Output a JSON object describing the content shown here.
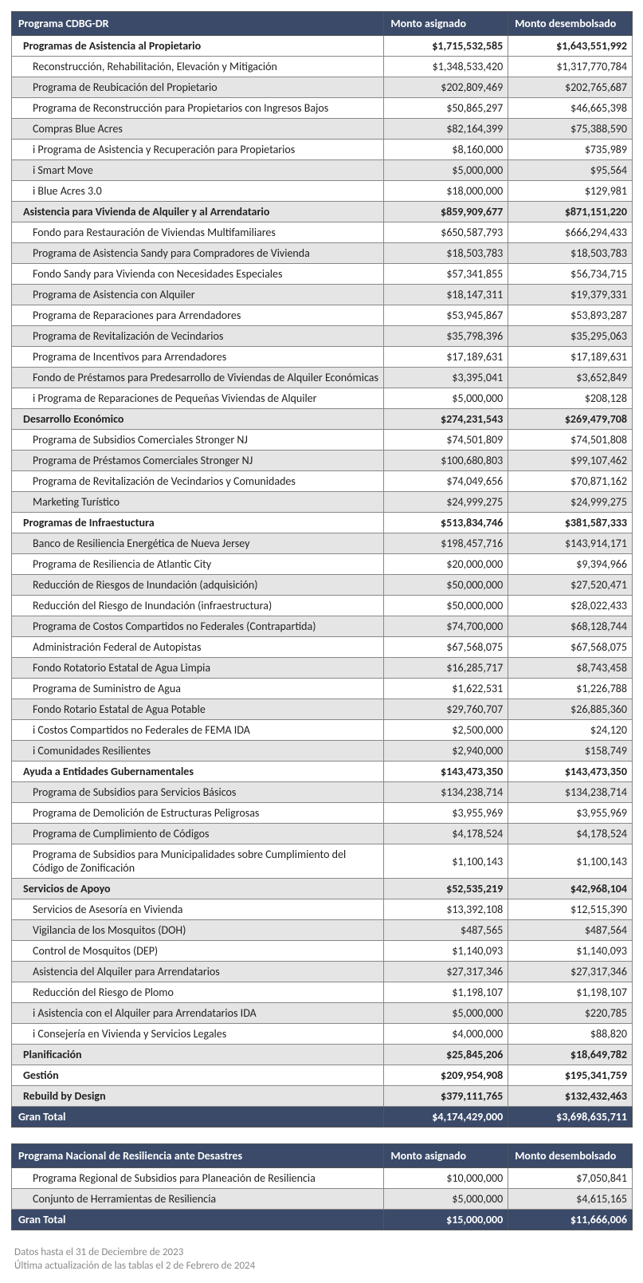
{
  "colors": {
    "header_bg": "#3a4a68",
    "header_text": "#ffffff",
    "row_alt_bg": "#e5e5e5",
    "row_bg": "#ffffff",
    "border": "#888888",
    "footnote": "#8a8a8a"
  },
  "fonts": {
    "family": "Calibri, 'Segoe UI', Arial, sans-serif",
    "base_size_pt": 11
  },
  "tables": [
    {
      "columns": [
        "Programa CDBG-DR",
        "Monto asignado",
        "Monto desembolsado"
      ],
      "rows": [
        {
          "type": "section",
          "alt": false,
          "label": "Programas de Asistencia al Propietario",
          "v1": "$1,715,532,585",
          "v2": "$1,643,551,992"
        },
        {
          "type": "item",
          "alt": false,
          "label": "Reconstrucción, Rehabilitación, Elevación y Mitigación",
          "v1": "$1,348,533,420",
          "v2": "$1,317,770,784"
        },
        {
          "type": "item",
          "alt": true,
          "label": "Programa de Reubicación del Propietario",
          "v1": "$202,809,469",
          "v2": "$202,765,687"
        },
        {
          "type": "item",
          "alt": false,
          "label": "Programa de Reconstrucción para Propietarios con Ingresos Bajos",
          "v1": "$50,865,297",
          "v2": "$46,665,398"
        },
        {
          "type": "item",
          "alt": true,
          "label": "Compras Blue Acres",
          "v1": "$82,164,399",
          "v2": "$75,388,590"
        },
        {
          "type": "item",
          "alt": false,
          "label": "i Programa de Asistencia y Recuperación para Propietarios",
          "v1": "$8,160,000",
          "v2": "$735,989"
        },
        {
          "type": "item",
          "alt": true,
          "label": "i Smart Move",
          "v1": "$5,000,000",
          "v2": "$95,564"
        },
        {
          "type": "item",
          "alt": false,
          "label": "i Blue Acres 3.0",
          "v1": "$18,000,000",
          "v2": "$129,981"
        },
        {
          "type": "section",
          "alt": true,
          "label": "Asistencia para Vivienda de Alquiler y al Arrendatario",
          "v1": "$859,909,677",
          "v2": "$871,151,220"
        },
        {
          "type": "item",
          "alt": false,
          "label": "Fondo para Restauración de Viviendas Multifamiliares",
          "v1": "$650,587,793",
          "v2": "$666,294,433"
        },
        {
          "type": "item",
          "alt": true,
          "label": "Programa de Asistencia Sandy para Compradores de Vivienda",
          "v1": "$18,503,783",
          "v2": "$18,503,783"
        },
        {
          "type": "item",
          "alt": false,
          "label": "Fondo Sandy para Vivienda con Necesidades Especiales",
          "v1": "$57,341,855",
          "v2": "$56,734,715"
        },
        {
          "type": "item",
          "alt": true,
          "label": "Programa de Asistencia con Alquiler",
          "v1": "$18,147,311",
          "v2": "$19,379,331"
        },
        {
          "type": "item",
          "alt": false,
          "label": "Programa de Reparaciones para Arrendadores",
          "v1": "$53,945,867",
          "v2": "$53,893,287"
        },
        {
          "type": "item",
          "alt": true,
          "label": "Programa de Revitalización de Vecindarios",
          "v1": "$35,798,396",
          "v2": "$35,295,063"
        },
        {
          "type": "item",
          "alt": false,
          "label": "Programa de Incentivos para Arrendadores",
          "v1": "$17,189,631",
          "v2": "$17,189,631"
        },
        {
          "type": "item",
          "alt": true,
          "label": "Fondo de Préstamos para Predesarrollo de Viviendas de Alquiler Económicas",
          "v1": "$3,395,041",
          "v2": "$3,652,849"
        },
        {
          "type": "item",
          "alt": false,
          "label": "i Programa de Reparaciones de Pequeñas Viviendas de Alquiler",
          "v1": "$5,000,000",
          "v2": "$208,128"
        },
        {
          "type": "section",
          "alt": true,
          "label": "Desarrollo Económico",
          "v1": "$274,231,543",
          "v2": "$269,479,708"
        },
        {
          "type": "item",
          "alt": false,
          "label": "Programa de Subsidios Comerciales Stronger NJ",
          "v1": "$74,501,809",
          "v2": "$74,501,808"
        },
        {
          "type": "item",
          "alt": true,
          "label": "Programa de Préstamos Comerciales Stronger NJ",
          "v1": "$100,680,803",
          "v2": "$99,107,462"
        },
        {
          "type": "item",
          "alt": false,
          "label": "Programa de Revitalización de Vecindarios y Comunidades",
          "v1": "$74,049,656",
          "v2": "$70,871,162"
        },
        {
          "type": "item",
          "alt": true,
          "label": "Marketing Turístico",
          "v1": "$24,999,275",
          "v2": "$24,999,275"
        },
        {
          "type": "section",
          "alt": false,
          "label": "Programas de Infraestuctura",
          "v1": "$513,834,746",
          "v2": "$381,587,333"
        },
        {
          "type": "item",
          "alt": true,
          "label": "Banco de Resiliencia Energética de Nueva Jersey",
          "v1": "$198,457,716",
          "v2": "$143,914,171"
        },
        {
          "type": "item",
          "alt": false,
          "label": "Programa de Resiliencia de Atlantic City",
          "v1": "$20,000,000",
          "v2": "$9,394,966"
        },
        {
          "type": "item",
          "alt": true,
          "label": "Reducción de Riesgos de Inundación (adquisición)",
          "v1": "$50,000,000",
          "v2": "$27,520,471"
        },
        {
          "type": "item",
          "alt": false,
          "label": "Reducción del Riesgo de Inundación (infraestructura)",
          "v1": "$50,000,000",
          "v2": "$28,022,433"
        },
        {
          "type": "item",
          "alt": true,
          "label": "Programa de Costos Compartidos no Federales (Contrapartida)",
          "v1": "$74,700,000",
          "v2": "$68,128,744"
        },
        {
          "type": "item",
          "alt": false,
          "label": "Administración Federal de Autopistas",
          "v1": "$67,568,075",
          "v2": "$67,568,075"
        },
        {
          "type": "item",
          "alt": true,
          "label": "Fondo Rotatorio Estatal de Agua Limpia",
          "v1": "$16,285,717",
          "v2": "$8,743,458"
        },
        {
          "type": "item",
          "alt": false,
          "label": "Programa de Suministro de Agua",
          "v1": "$1,622,531",
          "v2": "$1,226,788"
        },
        {
          "type": "item",
          "alt": true,
          "label": "Fondo Rotario Estatal de Agua Potable",
          "v1": "$29,760,707",
          "v2": "$26,885,360"
        },
        {
          "type": "item",
          "alt": false,
          "label": "i Costos Compartidos no Federales de FEMA IDA",
          "v1": "$2,500,000",
          "v2": "$24,120"
        },
        {
          "type": "item",
          "alt": true,
          "label": "i Comunidades Resilientes",
          "v1": "$2,940,000",
          "v2": "$158,749"
        },
        {
          "type": "section",
          "alt": false,
          "label": "Ayuda a Entidades Gubernamentales",
          "v1": "$143,473,350",
          "v2": "$143,473,350"
        },
        {
          "type": "item",
          "alt": true,
          "label": "Programa de Subsidios para Servicios Básicos",
          "v1": "$134,238,714",
          "v2": "$134,238,714"
        },
        {
          "type": "item",
          "alt": false,
          "label": "Programa de Demolición de Estructuras Peligrosas",
          "v1": "$3,955,969",
          "v2": "$3,955,969"
        },
        {
          "type": "item",
          "alt": true,
          "label": "Programa de Cumplimiento de Códigos",
          "v1": "$4,178,524",
          "v2": "$4,178,524"
        },
        {
          "type": "item",
          "alt": false,
          "label": "Programa de Subsidios para Municipalidades sobre Cumplimiento del Código de Zonificación",
          "v1": "$1,100,143",
          "v2": "$1,100,143"
        },
        {
          "type": "section",
          "alt": true,
          "label": "Servicios de Apoyo",
          "v1": "$52,535,219",
          "v2": "$42,968,104"
        },
        {
          "type": "item",
          "alt": false,
          "label": "Servicios de Asesoría en Vivienda",
          "v1": "$13,392,108",
          "v2": "$12,515,390"
        },
        {
          "type": "item",
          "alt": true,
          "label": "Vigilancia de los Mosquitos (DOH)",
          "v1": "$487,565",
          "v2": "$487,564"
        },
        {
          "type": "item",
          "alt": false,
          "label": "Control de Mosquitos (DEP)",
          "v1": "$1,140,093",
          "v2": "$1,140,093"
        },
        {
          "type": "item",
          "alt": true,
          "label": "Asistencia del Alquiler para Arrendatarios",
          "v1": "$27,317,346",
          "v2": "$27,317,346"
        },
        {
          "type": "item",
          "alt": false,
          "label": "Reducción del Riesgo de Plomo",
          "v1": "$1,198,107",
          "v2": "$1,198,107"
        },
        {
          "type": "item",
          "alt": true,
          "label": "i Asistencia con el Alquiler para Arrendatarios IDA",
          "v1": "$5,000,000",
          "v2": "$220,785"
        },
        {
          "type": "item",
          "alt": false,
          "label": "i Consejería en Vivienda y Servicios Legales",
          "v1": "$4,000,000",
          "v2": "$88,820"
        },
        {
          "type": "section",
          "alt": true,
          "label": "Planificación",
          "v1": "$25,845,206",
          "v2": "$18,649,782"
        },
        {
          "type": "section",
          "alt": false,
          "label": "Gestión",
          "v1": "$209,954,908",
          "v2": "$195,341,759"
        },
        {
          "type": "section",
          "alt": true,
          "label": "Rebuild by Design",
          "v1": "$379,111,765",
          "v2": "$132,432,463"
        },
        {
          "type": "total",
          "alt": false,
          "label": "Gran Total",
          "v1": "$4,174,429,000",
          "v2": "$3,698,635,711"
        }
      ]
    },
    {
      "columns": [
        "Programa Nacional de Resiliencia ante Desastres",
        "Monto asignado",
        "Monto desembolsado"
      ],
      "rows": [
        {
          "type": "item",
          "alt": false,
          "label": "Programa Regional de Subsidios para Planeación de Resiliencia",
          "v1": "$10,000,000",
          "v2": "$7,050,841"
        },
        {
          "type": "item",
          "alt": true,
          "label": "Conjunto de Herramientas de Resiliencia",
          "v1": "$5,000,000",
          "v2": "$4,615,165"
        },
        {
          "type": "total",
          "alt": false,
          "label": "Gran Total",
          "v1": "$15,000,000",
          "v2": "$11,666,006"
        }
      ]
    }
  ],
  "footnotes": [
    "Datos hasta el 31 de Deciembre de 2023",
    "Última actualización de las tablas el 2 de Febrero de 2024"
  ]
}
